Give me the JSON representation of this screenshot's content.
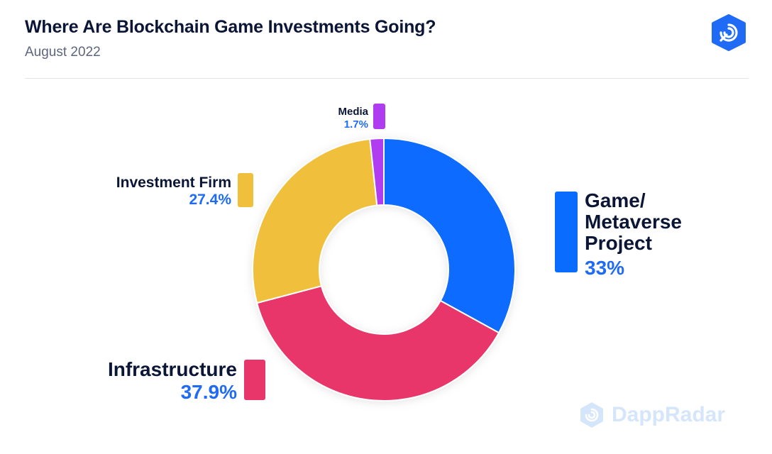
{
  "header": {
    "title": "Where Are Blockchain Game Investments Going?",
    "subtitle": "August 2022"
  },
  "brand": {
    "logo_icon": "dappradar-logo-icon",
    "watermark_text": "DappRadar",
    "accent": "#1f6bf5"
  },
  "chart_data": {
    "type": "pie",
    "variant": "donut",
    "title": "Where Are Blockchain Game Investments Going?",
    "subtitle": "August 2022",
    "unit": "%",
    "slices": [
      {
        "label": "Game/ Metaverse Project",
        "label_lines": [
          "Game/",
          "Metaverse",
          "Project"
        ],
        "value": 33,
        "value_label": "33%",
        "color": "#0a6cff"
      },
      {
        "label": "Infrastructure",
        "label_lines": [
          "Infrastructure"
        ],
        "value": 37.9,
        "value_label": "37.9%",
        "color": "#e8366b"
      },
      {
        "label": "Investment Firm",
        "label_lines": [
          "Investment Firm"
        ],
        "value": 27.4,
        "value_label": "27.4%",
        "color": "#f0bf3b"
      },
      {
        "label": "Media",
        "label_lines": [
          "Media"
        ],
        "value": 1.7,
        "value_label": "1.7%",
        "color": "#b03cf0"
      }
    ]
  }
}
